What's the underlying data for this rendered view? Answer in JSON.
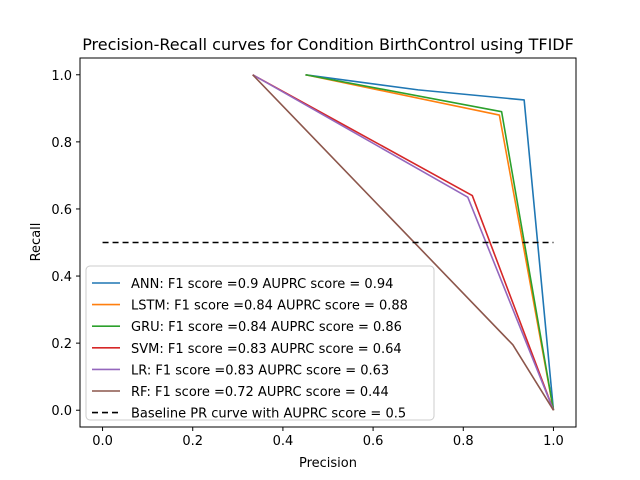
{
  "chart_data": {
    "type": "line",
    "title": "Precision-Recall curves for Condition BirthControl using TFIDF",
    "xlabel": "Precision",
    "ylabel": "Recall",
    "xlim": [
      -0.05,
      1.05
    ],
    "ylim": [
      -0.05,
      1.05
    ],
    "xticks": [
      0.0,
      0.2,
      0.4,
      0.6,
      0.8,
      1.0
    ],
    "yticks": [
      0.0,
      0.2,
      0.4,
      0.6,
      0.8,
      1.0
    ],
    "xtick_labels": [
      "0.0",
      "0.2",
      "0.4",
      "0.6",
      "0.8",
      "1.0"
    ],
    "ytick_labels": [
      "0.0",
      "0.2",
      "0.4",
      "0.6",
      "0.8",
      "1.0"
    ],
    "grid": false,
    "legend_position": "lower-left",
    "series": [
      {
        "name": "ANN: F1 score =0.9 AUPRC score = 0.94",
        "color": "#1f77b4",
        "dash": "solid",
        "x": [
          0.45,
          0.7,
          0.935,
          1.0
        ],
        "y": [
          1.0,
          0.955,
          0.925,
          0.0
        ]
      },
      {
        "name": "LSTM: F1 score =0.84 AUPRC score = 0.88",
        "color": "#ff7f0e",
        "dash": "solid",
        "x": [
          0.45,
          0.88,
          1.0
        ],
        "y": [
          1.0,
          0.88,
          0.0
        ]
      },
      {
        "name": "GRU: F1 score =0.84 AUPRC score = 0.86",
        "color": "#2ca02c",
        "dash": "solid",
        "x": [
          0.45,
          0.885,
          1.0
        ],
        "y": [
          1.0,
          0.89,
          0.0
        ]
      },
      {
        "name": "SVM: F1 score =0.83 AUPRC score = 0.64",
        "color": "#d62728",
        "dash": "solid",
        "x": [
          0.333,
          0.82,
          1.0
        ],
        "y": [
          1.0,
          0.64,
          0.0
        ]
      },
      {
        "name": "LR: F1 score =0.83 AUPRC score = 0.63",
        "color": "#9467bd",
        "dash": "solid",
        "x": [
          0.333,
          0.81,
          1.0
        ],
        "y": [
          1.0,
          0.635,
          0.0
        ]
      },
      {
        "name": "RF: F1 score =0.72 AUPRC score = 0.44",
        "color": "#8c564b",
        "dash": "solid",
        "x": [
          0.333,
          0.91,
          1.0
        ],
        "y": [
          1.0,
          0.195,
          0.0
        ]
      },
      {
        "name": "Baseline PR curve with AUPRC score = 0.5",
        "color": "#000000",
        "dash": "dashed",
        "x": [
          0.0,
          1.0
        ],
        "y": [
          0.5,
          0.5
        ]
      }
    ]
  }
}
